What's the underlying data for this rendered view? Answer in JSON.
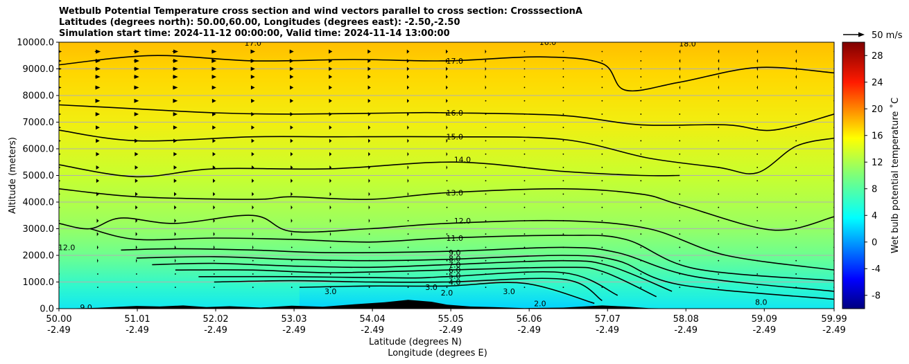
{
  "chart_data": {
    "type": "heatmap",
    "title_lines": [
      "Wetbulb Potential Temperature cross section and wind vectors parallel to cross section: CrosssectionA",
      "Latitudes (degrees north): 50.00,60.00, Longitudes (degrees east): -2.50,-2.50",
      "Simulation start time: 2024-11-12 00:00:00, Valid time: 2024-11-14 13:00:00"
    ],
    "ylabel": "Altitude (meters)",
    "xlabel_lines": [
      "Latitude (degrees N)",
      "Longitude (degrees E)"
    ],
    "xlim": [
      50.0,
      59.99
    ],
    "ylim": [
      0,
      10000
    ],
    "grid": "horizontal",
    "x_ticks": [
      {
        "lat": "50.00",
        "lon": "-2.49",
        "v": 50.0
      },
      {
        "lat": "51.01",
        "lon": "-2.49",
        "v": 51.01
      },
      {
        "lat": "52.02",
        "lon": "-2.49",
        "v": 52.02
      },
      {
        "lat": "53.03",
        "lon": "-2.49",
        "v": 53.03
      },
      {
        "lat": "54.04",
        "lon": "-2.49",
        "v": 54.04
      },
      {
        "lat": "55.05",
        "lon": "-2.49",
        "v": 55.05
      },
      {
        "lat": "56.06",
        "lon": "-2.49",
        "v": 56.06
      },
      {
        "lat": "57.07",
        "lon": "-2.49",
        "v": 57.07
      },
      {
        "lat": "58.08",
        "lon": "-2.49",
        "v": 58.08
      },
      {
        "lat": "59.09",
        "lon": "-2.49",
        "v": 59.09
      },
      {
        "lat": "59.99",
        "lon": "-2.49",
        "v": 59.99
      }
    ],
    "y_ticks": [
      {
        "label": "0.0",
        "v": 0
      },
      {
        "label": "1000.0",
        "v": 1000
      },
      {
        "label": "2000.0",
        "v": 2000
      },
      {
        "label": "3000.0",
        "v": 3000
      },
      {
        "label": "4000.0",
        "v": 4000
      },
      {
        "label": "5000.0",
        "v": 5000
      },
      {
        "label": "6000.0",
        "v": 6000
      },
      {
        "label": "7000.0",
        "v": 7000
      },
      {
        "label": "8000.0",
        "v": 8000
      },
      {
        "label": "9000.0",
        "v": 9000
      },
      {
        "label": "10000.0",
        "v": 10000
      }
    ],
    "colorbar": {
      "label": "Wet bulb potential temperature ˚C",
      "range": [
        -10,
        30
      ],
      "ticks": [
        "-8",
        "-4",
        "0",
        "4",
        "8",
        "12",
        "16",
        "20",
        "24",
        "28"
      ],
      "tick_values": [
        -8,
        -4,
        0,
        4,
        8,
        12,
        16,
        20,
        24,
        28
      ],
      "colormap": "jet"
    },
    "quiver_key": {
      "label": "50 m/s",
      "speed": 50
    },
    "contours": [
      {
        "level": "17.0",
        "points": [
          [
            50.0,
            9150
          ],
          [
            51.2,
            9500
          ],
          [
            52.5,
            9300
          ],
          [
            53.8,
            9350
          ],
          [
            55.0,
            9300
          ],
          [
            56.2,
            9450
          ],
          [
            57.0,
            9200
          ],
          [
            57.3,
            8200
          ],
          [
            58.0,
            8500
          ],
          [
            59.0,
            9050
          ],
          [
            59.99,
            8850
          ]
        ],
        "labels": [
          {
            "text": "17.0",
            "x": 55.1,
            "y": 9300
          },
          {
            "text": "17.0",
            "x": 52.5,
            "y": 9980
          }
        ]
      },
      {
        "level": "16.0",
        "points": [
          [
            50.0,
            7650
          ],
          [
            51.0,
            7500
          ],
          [
            52.0,
            7350
          ],
          [
            53.0,
            7300
          ],
          [
            54.5,
            7350
          ],
          [
            55.0,
            7350
          ],
          [
            56.5,
            7250
          ],
          [
            57.5,
            6900
          ],
          [
            58.6,
            6900
          ],
          [
            59.2,
            6700
          ],
          [
            59.99,
            7300
          ]
        ],
        "labels": [
          {
            "text": "16.0",
            "x": 55.1,
            "y": 7350
          },
          {
            "text": "16.0",
            "x": 56.3,
            "y": 10000
          }
        ]
      },
      {
        "level": "15.0",
        "points": [
          [
            50.0,
            6700
          ],
          [
            51.0,
            6300
          ],
          [
            52.5,
            6450
          ],
          [
            53.5,
            6450
          ],
          [
            55.0,
            6450
          ],
          [
            56.5,
            6350
          ],
          [
            57.6,
            5650
          ],
          [
            58.5,
            5300
          ],
          [
            59.0,
            5100
          ],
          [
            59.5,
            6100
          ],
          [
            59.99,
            6400
          ]
        ],
        "labels": [
          {
            "text": "15.0",
            "x": 55.1,
            "y": 6450
          }
        ]
      },
      {
        "level": "14.0",
        "points": [
          [
            50.0,
            5400
          ],
          [
            51.0,
            4950
          ],
          [
            52.0,
            5250
          ],
          [
            53.5,
            5250
          ],
          [
            55.1,
            5500
          ],
          [
            56.5,
            5150
          ],
          [
            57.5,
            5000
          ],
          [
            58.0,
            5000
          ]
        ],
        "labels": [
          {
            "text": "14.0",
            "x": 55.2,
            "y": 5600
          },
          {
            "text": "18.0",
            "x": 58.1,
            "y": 9950
          }
        ]
      },
      {
        "level": "13.0",
        "points": [
          [
            50.0,
            4500
          ],
          [
            51.0,
            4200
          ],
          [
            52.5,
            4100
          ],
          [
            53.0,
            4200
          ],
          [
            54.0,
            4100
          ],
          [
            55.0,
            4350
          ],
          [
            56.5,
            4500
          ],
          [
            57.5,
            4300
          ],
          [
            58.0,
            3900
          ],
          [
            59.2,
            2950
          ],
          [
            59.99,
            3450
          ]
        ],
        "labels": [
          {
            "text": "13.0",
            "x": 55.1,
            "y": 4350
          }
        ]
      },
      {
        "level": "12.0",
        "points": [
          [
            50.0,
            3200
          ],
          [
            50.4,
            3000
          ],
          [
            50.8,
            3400
          ],
          [
            51.5,
            3200
          ],
          [
            52.5,
            3500
          ],
          [
            53.0,
            2900
          ],
          [
            54.0,
            3000
          ],
          [
            55.0,
            3200
          ],
          [
            56.5,
            3300
          ],
          [
            57.6,
            3000
          ],
          [
            58.6,
            2000
          ],
          [
            59.99,
            1450
          ]
        ],
        "labels": [
          {
            "text": "12.0",
            "x": 55.2,
            "y": 3300
          },
          {
            "text": "12.0",
            "x": 50.1,
            "y": 2300
          }
        ]
      },
      {
        "level": "11.0",
        "points": [
          [
            50.4,
            3000
          ],
          [
            51.0,
            2600
          ],
          [
            52.0,
            2650
          ],
          [
            53.0,
            2600
          ],
          [
            54.0,
            2500
          ],
          [
            55.0,
            2650
          ],
          [
            56.5,
            2750
          ],
          [
            57.3,
            2600
          ],
          [
            58.2,
            1500
          ],
          [
            59.99,
            1050
          ]
        ],
        "labels": [
          {
            "text": "11.0",
            "x": 55.1,
            "y": 2650
          }
        ]
      },
      {
        "level": "9.0",
        "points": [
          [
            50.8,
            2200
          ],
          [
            51.5,
            2250
          ],
          [
            52.5,
            2200
          ],
          [
            53.5,
            2100
          ],
          [
            55.0,
            2150
          ],
          [
            56.5,
            2300
          ],
          [
            57.2,
            2100
          ],
          [
            58.2,
            1200
          ],
          [
            59.99,
            650
          ]
        ],
        "labels": [
          {
            "text": "9.0",
            "x": 55.1,
            "y": 2100
          },
          {
            "text": "9.0",
            "x": 50.35,
            "y": 50
          },
          {
            "text": "8.0",
            "x": 59.05,
            "y": 250
          }
        ]
      },
      {
        "level": "8.0",
        "points": [
          [
            51.0,
            1900
          ],
          [
            52.0,
            1950
          ],
          [
            53.0,
            1850
          ],
          [
            54.0,
            1800
          ],
          [
            55.0,
            1850
          ],
          [
            56.5,
            2000
          ],
          [
            57.2,
            1800
          ],
          [
            58.0,
            900
          ],
          [
            59.99,
            350
          ]
        ],
        "labels": [
          {
            "text": "8.0",
            "x": 55.1,
            "y": 1880
          }
        ]
      },
      {
        "level": "7.0",
        "points": [
          [
            51.2,
            1650
          ],
          [
            52.0,
            1700
          ],
          [
            53.0,
            1600
          ],
          [
            54.0,
            1550
          ],
          [
            55.0,
            1650
          ],
          [
            56.5,
            1800
          ],
          [
            57.1,
            1600
          ],
          [
            57.9,
            650
          ]
        ],
        "labels": [
          {
            "text": "7.0",
            "x": 55.1,
            "y": 1650
          }
        ]
      },
      {
        "level": "6.0",
        "points": [
          [
            51.5,
            1450
          ],
          [
            52.5,
            1450
          ],
          [
            53.5,
            1350
          ],
          [
            55.0,
            1450
          ],
          [
            56.5,
            1550
          ],
          [
            57.0,
            1400
          ],
          [
            57.7,
            450
          ]
        ],
        "labels": [
          {
            "text": "6.0",
            "x": 55.1,
            "y": 1450
          }
        ]
      },
      {
        "level": "5.0",
        "points": [
          [
            51.8,
            1200
          ],
          [
            53.0,
            1200
          ],
          [
            54.5,
            1150
          ],
          [
            55.0,
            1200
          ],
          [
            56.5,
            1350
          ],
          [
            57.2,
            500
          ]
        ],
        "labels": [
          {
            "text": "5.0",
            "x": 55.1,
            "y": 1230
          }
        ]
      },
      {
        "level": "4.0",
        "points": [
          [
            52.0,
            1000
          ],
          [
            53.0,
            1050
          ],
          [
            54.0,
            1000
          ],
          [
            55.0,
            1000
          ],
          [
            56.5,
            1100
          ],
          [
            57.0,
            300
          ]
        ],
        "labels": [
          {
            "text": "4.0",
            "x": 55.1,
            "y": 1000
          }
        ]
      },
      {
        "level": "3.0",
        "points": [
          [
            53.1,
            800
          ],
          [
            54.0,
            850
          ],
          [
            55.0,
            850
          ],
          [
            56.0,
            950
          ],
          [
            56.9,
            200
          ]
        ],
        "labels": [
          {
            "text": "3.0",
            "x": 53.5,
            "y": 650
          },
          {
            "text": "3.0",
            "x": 54.8,
            "y": 800
          },
          {
            "text": "3.0",
            "x": 55.8,
            "y": 650
          },
          {
            "text": "2.0",
            "x": 55.0,
            "y": 600
          },
          {
            "text": "2.0",
            "x": 56.2,
            "y": 200
          }
        ]
      }
    ],
    "terrain": [
      [
        50.0,
        0
      ],
      [
        50.5,
        30
      ],
      [
        51.0,
        100
      ],
      [
        51.3,
        80
      ],
      [
        51.6,
        120
      ],
      [
        51.9,
        60
      ],
      [
        52.2,
        90
      ],
      [
        52.6,
        40
      ],
      [
        53.0,
        110
      ],
      [
        53.4,
        70
      ],
      [
        53.8,
        160
      ],
      [
        54.2,
        240
      ],
      [
        54.5,
        330
      ],
      [
        54.8,
        260
      ],
      [
        55.0,
        150
      ],
      [
        55.3,
        80
      ],
      [
        55.6,
        60
      ],
      [
        56.0,
        20
      ],
      [
        56.5,
        40
      ],
      [
        57.0,
        120
      ],
      [
        57.3,
        80
      ],
      [
        57.6,
        20
      ],
      [
        58.0,
        0
      ],
      [
        59.99,
        0
      ]
    ],
    "wind": {
      "rows": [
        9650,
        9300,
        9000,
        8700,
        8300,
        7800,
        7300,
        6800,
        6300,
        5800,
        5300,
        4800,
        4300,
        3800,
        3300,
        2800,
        2300,
        1800,
        1300,
        800
      ],
      "cols": [
        50.0,
        50.5,
        51.0,
        51.5,
        52.0,
        52.5,
        53.0,
        53.5,
        54.0,
        54.5,
        55.0,
        55.5,
        56.0,
        56.5,
        57.0,
        57.5,
        58.0,
        58.5,
        59.0,
        59.5,
        59.99
      ],
      "top_speed": [
        14,
        14,
        14,
        14,
        12,
        11,
        10,
        9,
        8,
        6,
        5,
        3,
        2,
        0,
        -2,
        -2,
        -3,
        -3,
        -3,
        -3,
        -3
      ]
    }
  }
}
